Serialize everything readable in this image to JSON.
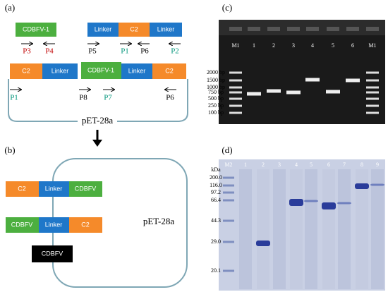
{
  "panel_a": {
    "label": "(a)",
    "fragments": [
      "CDBFV-1",
      "Linker",
      "C2",
      "Linker"
    ],
    "fragment_primers": [
      "P3",
      "P4",
      "P5",
      "P1",
      "P6",
      "P2"
    ],
    "construct": [
      "C2",
      "Linker",
      "CDBFV-1",
      "Linker",
      "C2"
    ],
    "construct_primers": [
      "P1",
      "P8",
      "P7",
      "P6"
    ],
    "plasmid": "pET-28a"
  },
  "panel_b": {
    "label": "(b)",
    "construct_1": [
      "C2",
      "Linker",
      "CDBFV"
    ],
    "construct_2": [
      "CDBFV",
      "Linker",
      "C2"
    ],
    "construct_3": "CDBFV",
    "plasmid": "pET-28a"
  },
  "panel_c": {
    "label": "(c)",
    "lanes": [
      "M1",
      "1",
      "2",
      "3",
      "4",
      "5",
      "6",
      "M1"
    ],
    "markers": [
      "2000 bp",
      "1500 bp",
      "1000 bp",
      "750 bp",
      "500 bp",
      "250 bp",
      "100 bp"
    ]
  },
  "panel_d": {
    "label": "(d)",
    "unit": "kDa",
    "markers": [
      "200.0",
      "116.0",
      "97.2",
      "66.4",
      "44.3",
      "29.0",
      "20.1"
    ],
    "lanes": [
      "M2",
      "1",
      "2",
      "3",
      "4",
      "5",
      "6",
      "7",
      "8",
      "9"
    ]
  }
}
